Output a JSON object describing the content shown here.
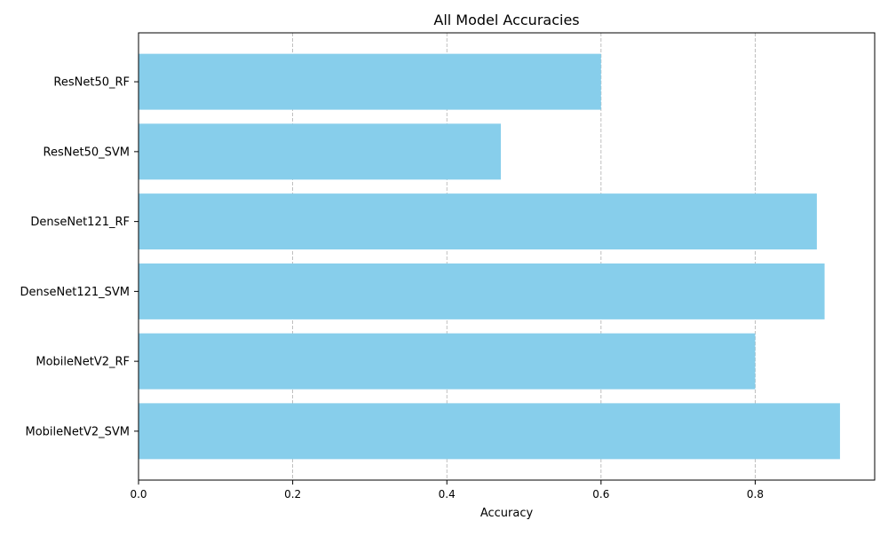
{
  "chart_data": {
    "type": "bar",
    "orientation": "horizontal",
    "title": "All Model Accuracies",
    "xlabel": "Accuracy",
    "ylabel": "",
    "categories": [
      "ResNet50_RF",
      "ResNet50_SVM",
      "DenseNet121_RF",
      "DenseNet121_SVM",
      "MobileNetV2_RF",
      "MobileNetV2_SVM"
    ],
    "values": [
      0.6,
      0.47,
      0.88,
      0.89,
      0.8,
      0.91
    ],
    "xlim": [
      0,
      0.955
    ],
    "xticks": [
      0.0,
      0.2,
      0.4,
      0.6,
      0.8
    ],
    "xtick_labels": [
      "0.0",
      "0.2",
      "0.4",
      "0.6",
      "0.8"
    ],
    "grid": "x-axis dashed",
    "bar_color": "#87ceeb",
    "grid_color": "#b0b0b0"
  }
}
